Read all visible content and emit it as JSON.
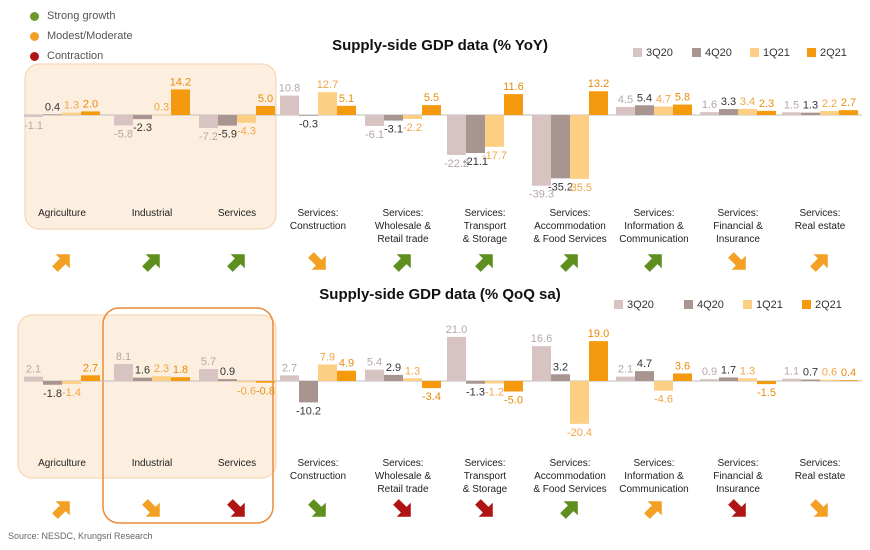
{
  "colors": {
    "3Q20": "#d8c3c3",
    "4Q20": "#a8958f",
    "1Q21": "#fccf85",
    "2Q21": "#f59a0e",
    "green": "#5e8f1f",
    "orange": "#f4a024",
    "red": "#b01515",
    "highlight": "#fcefdf",
    "box": "#ec8a3a"
  },
  "growth_legend": [
    {
      "label": "Strong growth",
      "color": "#6a9a2a"
    },
    {
      "label": "Modest/Moderate",
      "color": "#f4a024"
    },
    {
      "label": "Contraction",
      "color": "#b01515"
    }
  ],
  "source": "Source: NESDC, Krungsri Research",
  "chart_data": [
    {
      "type": "bar",
      "title": "Supply-side GDP data (% YoY)",
      "categories": [
        "Agriculture",
        "Industrial",
        "Services",
        "Services: Construction",
        "Services: Wholesale & Retail trade",
        "Services: Transport & Storage",
        "Services: Accommodation & Food Services",
        "Services: Information & Communication",
        "Services: Financial & Insurance",
        "Services: Real estate"
      ],
      "category_lines": [
        [
          "Agriculture"
        ],
        [
          "Industrial"
        ],
        [
          "Services"
        ],
        [
          "Services:",
          "Construction"
        ],
        [
          "Services:",
          "Wholesale &",
          "Retail trade"
        ],
        [
          "Services:",
          "Transport",
          "& Storage"
        ],
        [
          "Services:",
          "Accommodation",
          "& Food Services"
        ],
        [
          "Services:",
          "Information &",
          "Communication"
        ],
        [
          "Services:",
          "Financial &",
          "Insurance"
        ],
        [
          "Services:",
          "Real estate"
        ]
      ],
      "series": [
        {
          "name": "3Q20",
          "values": [
            -1.1,
            -5.8,
            -7.2,
            10.8,
            -6.1,
            -22.2,
            -39.3,
            4.5,
            1.6,
            1.5
          ]
        },
        {
          "name": "4Q20",
          "values": [
            0.4,
            -2.3,
            -5.9,
            -0.3,
            -3.1,
            -21.1,
            -35.2,
            5.4,
            3.3,
            1.3
          ]
        },
        {
          "name": "1Q21",
          "values": [
            1.3,
            0.3,
            -4.3,
            12.7,
            -2.2,
            -17.7,
            -35.5,
            4.7,
            3.4,
            2.2
          ]
        },
        {
          "name": "2Q21",
          "values": [
            2.0,
            14.2,
            5.0,
            5.1,
            5.5,
            11.6,
            13.2,
            5.8,
            2.3,
            2.7
          ]
        }
      ],
      "arrows": [
        "orange-up",
        "green-up",
        "green-up",
        "orange-down",
        "green-up",
        "green-up",
        "green-up",
        "green-up",
        "orange-down",
        "orange-up"
      ],
      "highlight_groups": [
        0,
        1,
        2
      ],
      "outline_groups": []
    },
    {
      "type": "bar",
      "title": "Supply-side GDP data (% QoQ sa)",
      "categories": [
        "Agriculture",
        "Industrial",
        "Services",
        "Services: Construction",
        "Services: Wholesale & Retail trade",
        "Services: Transport & Storage",
        "Services: Accommodation & Food Services",
        "Services: Information & Communication",
        "Services: Financial & Insurance",
        "Services: Real estate"
      ],
      "category_lines": [
        [
          "Agriculture"
        ],
        [
          "Industrial"
        ],
        [
          "Services"
        ],
        [
          "Services:",
          "Construction"
        ],
        [
          "Services:",
          "Wholesale &",
          "Retail trade"
        ],
        [
          "Services:",
          "Transport",
          "& Storage"
        ],
        [
          "Services:",
          "Accommodation",
          "& Food Services"
        ],
        [
          "Services:",
          "Information &",
          "Communication"
        ],
        [
          "Services:",
          "Financial &",
          "Insurance"
        ],
        [
          "Services:",
          "Real estate"
        ]
      ],
      "series": [
        {
          "name": "3Q20",
          "values": [
            2.1,
            8.1,
            5.7,
            2.7,
            5.4,
            21.0,
            16.6,
            2.1,
            0.9,
            1.1
          ]
        },
        {
          "name": "4Q20",
          "values": [
            -1.8,
            1.6,
            0.9,
            -10.2,
            2.9,
            -1.3,
            3.2,
            4.7,
            1.7,
            0.7
          ]
        },
        {
          "name": "1Q21",
          "values": [
            -1.4,
            2.3,
            -0.6,
            7.9,
            1.3,
            -1.2,
            -20.4,
            -4.6,
            1.3,
            0.6
          ]
        },
        {
          "name": "2Q21",
          "values": [
            2.7,
            1.8,
            -0.8,
            4.9,
            -3.4,
            -5.0,
            19.0,
            3.6,
            -1.5,
            0.4
          ]
        }
      ],
      "arrows": [
        "orange-up",
        "orange-down",
        "red-down",
        "green-down",
        "red-down",
        "red-down",
        "green-up",
        "orange-up",
        "red-down",
        "orange-down"
      ],
      "highlight_groups": [
        0,
        1,
        2
      ],
      "outline_groups": [
        1,
        2
      ]
    }
  ]
}
